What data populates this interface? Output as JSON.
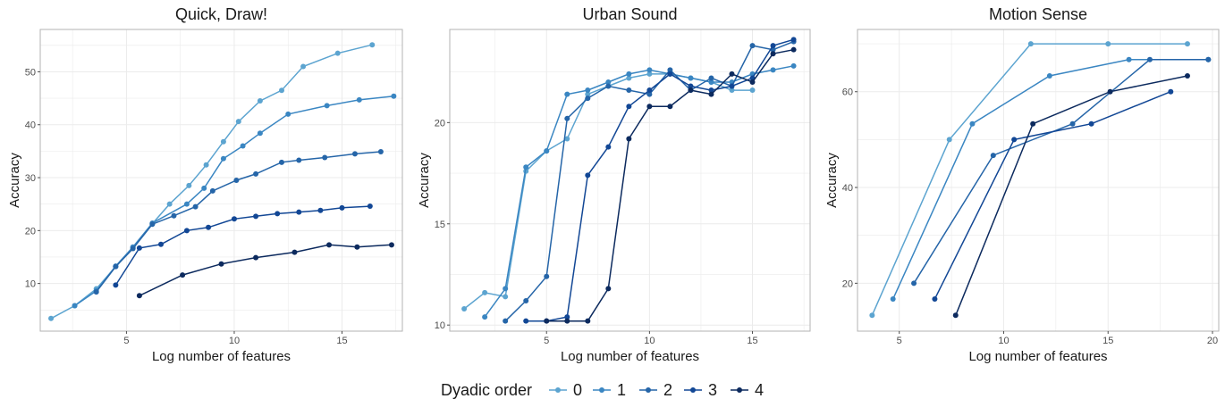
{
  "legend": {
    "title": "Dyadic order",
    "entries": [
      "0",
      "1",
      "2",
      "3",
      "4"
    ],
    "placement": "bottom"
  },
  "colors": [
    "#5ca4d0",
    "#3a86c2",
    "#2565a8",
    "#124795",
    "#0c2a5e"
  ],
  "chart_data": [
    {
      "type": "line",
      "title": "Quick, Draw!",
      "xlabel": "Log number of features",
      "ylabel": "Accuracy",
      "xlim": [
        1,
        17.8
      ],
      "ylim": [
        1,
        58
      ],
      "xticks": [
        5,
        10,
        15
      ],
      "yticks": [
        10,
        20,
        30,
        40,
        50
      ],
      "grid": true,
      "series": [
        {
          "name": "0",
          "x": [
            1.5,
            2.6,
            3.6,
            4.5,
            5.3,
            6.2,
            7.0,
            7.9,
            8.7,
            9.5,
            10.2,
            11.2,
            12.2,
            13.2,
            14.8,
            16.4
          ],
          "y": [
            3.4,
            5.8,
            9.0,
            13.2,
            16.8,
            21.3,
            25.0,
            28.5,
            32.4,
            36.8,
            40.6,
            44.5,
            46.5,
            51.0,
            53.5,
            55.1
          ]
        },
        {
          "name": "1",
          "x": [
            2.6,
            3.6,
            4.5,
            5.3,
            6.2,
            7.8,
            8.6,
            9.5,
            10.4,
            11.2,
            12.5,
            14.3,
            15.8,
            17.4
          ],
          "y": [
            5.8,
            8.6,
            13.3,
            16.9,
            21.4,
            25.0,
            28.0,
            33.6,
            36.0,
            38.4,
            42.0,
            43.6,
            44.7,
            45.4
          ]
        },
        {
          "name": "2",
          "x": [
            3.6,
            4.5,
            5.3,
            6.2,
            7.2,
            8.2,
            9.0,
            10.1,
            11.0,
            12.2,
            13.0,
            14.2,
            15.6,
            16.8
          ],
          "y": [
            8.4,
            13.2,
            16.6,
            21.2,
            22.8,
            24.5,
            27.5,
            29.5,
            30.7,
            32.9,
            33.3,
            33.8,
            34.5,
            34.9
          ]
        },
        {
          "name": "3",
          "x": [
            4.5,
            5.6,
            6.6,
            7.8,
            8.8,
            10.0,
            11.0,
            12.0,
            13.0,
            14.0,
            15.0,
            16.3
          ],
          "y": [
            9.7,
            16.7,
            17.4,
            20.0,
            20.6,
            22.2,
            22.7,
            23.2,
            23.5,
            23.8,
            24.3,
            24.6
          ]
        },
        {
          "name": "4",
          "x": [
            5.6,
            7.6,
            9.4,
            11.0,
            12.8,
            14.4,
            15.7,
            17.3
          ],
          "y": [
            7.7,
            11.6,
            13.7,
            14.9,
            15.9,
            17.3,
            16.9,
            17.3
          ]
        }
      ]
    },
    {
      "type": "line",
      "title": "Urban Sound",
      "xlabel": "Log number of features",
      "ylabel": "Accuracy",
      "xlim": [
        0.3,
        17.8
      ],
      "ylim": [
        9.7,
        24.6
      ],
      "xticks": [
        5,
        10,
        15
      ],
      "yticks": [
        10,
        15,
        20
      ],
      "grid": true,
      "series": [
        {
          "name": "0",
          "x": [
            1,
            2,
            3,
            4,
            5,
            6,
            7,
            8,
            9,
            10,
            11,
            12,
            13,
            14,
            15
          ],
          "y": [
            10.8,
            11.6,
            11.4,
            17.6,
            18.6,
            19.2,
            21.4,
            21.8,
            22.2,
            22.4,
            22.4,
            22.2,
            22.0,
            21.6,
            21.6
          ]
        },
        {
          "name": "1",
          "x": [
            2,
            3,
            4,
            5,
            6,
            7,
            8,
            9,
            10,
            11,
            12,
            13,
            14,
            15,
            16,
            17
          ],
          "y": [
            10.4,
            11.8,
            17.8,
            18.6,
            21.4,
            21.6,
            22.0,
            22.4,
            22.6,
            22.4,
            22.2,
            22.0,
            22.0,
            22.4,
            22.6,
            22.8
          ]
        },
        {
          "name": "2",
          "x": [
            3,
            4,
            5,
            6,
            7,
            8,
            9,
            10,
            11,
            12,
            13,
            14,
            15,
            16,
            17
          ],
          "y": [
            10.2,
            11.2,
            12.4,
            20.2,
            21.2,
            21.8,
            21.6,
            21.4,
            22.6,
            21.6,
            22.2,
            21.8,
            23.8,
            23.6,
            24.0
          ]
        },
        {
          "name": "3",
          "x": [
            4,
            5,
            6,
            7,
            8,
            9,
            10,
            11,
            12,
            13,
            14,
            15,
            16,
            17
          ],
          "y": [
            10.2,
            10.2,
            10.4,
            17.4,
            18.8,
            20.8,
            21.6,
            22.4,
            21.8,
            21.6,
            21.8,
            22.2,
            23.8,
            24.1
          ]
        },
        {
          "name": "4",
          "x": [
            5,
            6,
            7,
            8,
            9,
            10,
            11,
            12,
            13,
            14,
            15,
            16,
            17
          ],
          "y": [
            10.2,
            10.2,
            10.2,
            11.8,
            19.2,
            20.8,
            20.8,
            21.6,
            21.4,
            22.4,
            22.0,
            23.4,
            23.6
          ]
        }
      ]
    },
    {
      "type": "line",
      "title": "Motion Sense",
      "xlabel": "Log number of features",
      "ylabel": "Accuracy",
      "xlim": [
        3.0,
        20.3
      ],
      "ylim": [
        10,
        73
      ],
      "xticks": [
        5,
        10,
        15,
        20
      ],
      "yticks": [
        20,
        40,
        60
      ],
      "grid": true,
      "series": [
        {
          "name": "0",
          "x": [
            3.7,
            7.4,
            11.3,
            15.0,
            18.8
          ],
          "y": [
            13.3,
            50.0,
            70.0,
            70.0,
            70.0
          ]
        },
        {
          "name": "1",
          "x": [
            4.7,
            8.5,
            12.2,
            16.0,
            19.8
          ],
          "y": [
            16.7,
            53.3,
            63.3,
            66.7,
            66.7
          ]
        },
        {
          "name": "2",
          "x": [
            5.7,
            9.5,
            13.3,
            17.0,
            19.8
          ],
          "y": [
            20.0,
            46.7,
            53.3,
            66.7,
            66.7
          ]
        },
        {
          "name": "3",
          "x": [
            6.7,
            10.5,
            14.2,
            18.0
          ],
          "y": [
            16.7,
            50.0,
            53.3,
            60.0
          ]
        },
        {
          "name": "4",
          "x": [
            7.7,
            11.4,
            15.1,
            18.8
          ],
          "y": [
            13.3,
            53.3,
            60.0,
            63.3
          ]
        }
      ]
    }
  ]
}
